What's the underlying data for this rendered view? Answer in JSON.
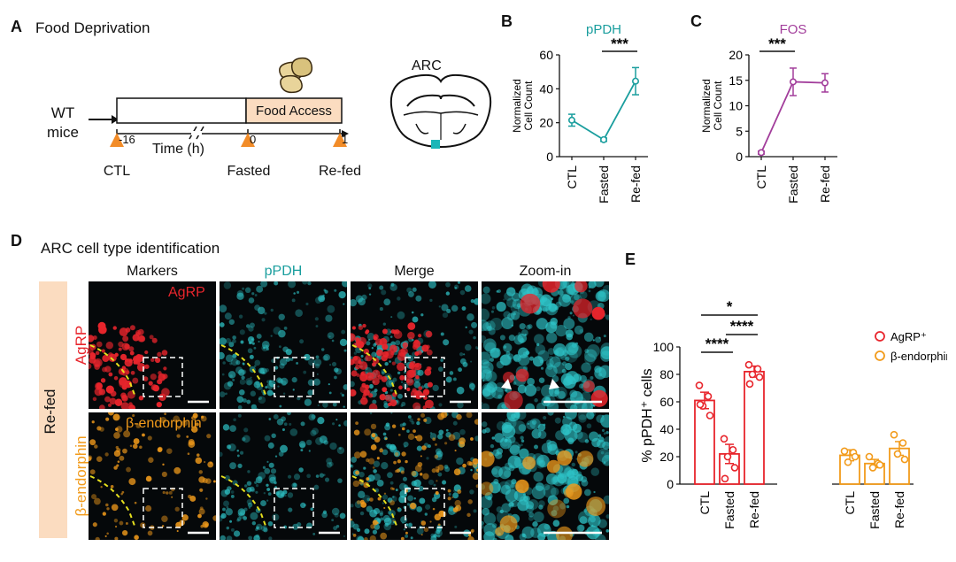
{
  "panels": {
    "A": {
      "label": "A",
      "title": "Food Deprivation",
      "subject_line1": "WT",
      "subject_line2": "mice",
      "food_access": "Food Access",
      "ticks": [
        "-16",
        "0",
        "1"
      ],
      "time_label": "Time (h)",
      "events": [
        "CTL",
        "Fasted",
        "Re-fed"
      ],
      "region": "ARC",
      "colors": {
        "arrow": "#f28c28",
        "food_box": "#fbdcc0",
        "region_marker": "#1bb6b8"
      }
    },
    "B": {
      "label": "B"
    },
    "C": {
      "label": "C"
    },
    "D": {
      "label": "D",
      "title": "ARC cell type identification",
      "columns": [
        "Markers",
        "pPDH",
        "Merge",
        "Zoom-in"
      ],
      "condition": "Re-fed",
      "rows": [
        {
          "side_label": "AgRP",
          "marker_label": "AgRP",
          "color": "#e8252c"
        },
        {
          "side_label": "β-endorphin",
          "marker_label": "β-endorphin",
          "color": "#f29b1b"
        }
      ],
      "merge_color": "#2ec4c8"
    },
    "E": {
      "label": "E"
    }
  },
  "chart_data": [
    {
      "panel": "B",
      "type": "line",
      "title": "pPDH",
      "ylabel": "Normalized Cell Count",
      "categories": [
        "CTL",
        "Fasted",
        "Re-fed"
      ],
      "values": [
        21.5,
        10,
        44.5
      ],
      "errors": [
        3.5,
        1,
        8
      ],
      "ylim": [
        0,
        60
      ],
      "yticks": [
        0,
        20,
        40,
        60
      ],
      "color": "#1a9e9e",
      "significance": [
        {
          "from": "Fasted",
          "to": "Re-fed",
          "label": "***"
        }
      ]
    },
    {
      "panel": "C",
      "type": "line",
      "title": "FOS",
      "ylabel": "Normalized Cell Count",
      "categories": [
        "CTL",
        "Fasted",
        "Re-fed"
      ],
      "values": [
        0.8,
        14.7,
        14.5
      ],
      "errors": [
        0.3,
        2.7,
        1.8
      ],
      "ylim": [
        0,
        20
      ],
      "yticks": [
        0,
        5,
        10,
        15,
        20
      ],
      "color": "#a23d9b",
      "significance": [
        {
          "from": "CTL",
          "to": "Fasted",
          "label": "***"
        }
      ]
    },
    {
      "panel": "E",
      "type": "bar",
      "ylabel": "% pPDH⁺ cells",
      "categories": [
        "CTL",
        "Fasted",
        "Re-fed"
      ],
      "ylim": [
        0,
        100
      ],
      "yticks": [
        0,
        20,
        40,
        60,
        80,
        100
      ],
      "series": [
        {
          "name": "AgRP⁺",
          "color": "#e8252c",
          "values": [
            61,
            22,
            82
          ],
          "errors": [
            6,
            7,
            4
          ],
          "points": [
            [
              72,
              64,
              57,
              50,
              58
            ],
            [
              33,
              25,
              20,
              12,
              4
            ],
            [
              87,
              84,
              80,
              78,
              73
            ]
          ]
        },
        {
          "name": "β-endorphin⁺",
          "color": "#f29b1b",
          "values": [
            21,
            15,
            26
          ],
          "errors": [
            4,
            3,
            5
          ],
          "points": [
            [
              24,
              23,
              16,
              20
            ],
            [
              20,
              15,
              12,
              14
            ],
            [
              36,
              30,
              22,
              18
            ]
          ]
        }
      ],
      "significance": [
        {
          "label": "*"
        },
        {
          "label": "****"
        },
        {
          "label": "****"
        }
      ]
    }
  ]
}
